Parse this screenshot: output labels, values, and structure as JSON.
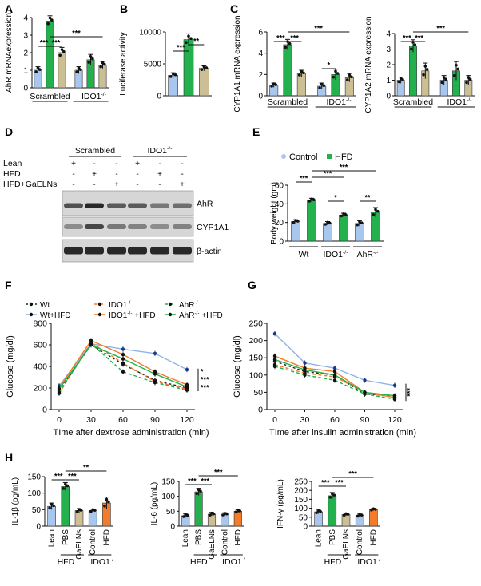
{
  "colors": {
    "lean": "#a9c7ee",
    "hfd": "#22b14c",
    "gaelns": "#cdbf94",
    "ctrl_ido": "#a9c7ee",
    "hfd_ido": "#f47b2a",
    "sig_line": "#111111"
  },
  "chart_data": [
    {
      "id": "A",
      "panel_label": "A",
      "type": "bar",
      "ylabel": "AhR mRNAexpression",
      "ylim": [
        0,
        4
      ],
      "yticks": [
        "0",
        "1",
        "2",
        "3",
        "4"
      ],
      "values": [
        1.0,
        3.8,
        2.0,
        1.0,
        1.6,
        1.3
      ],
      "errors": [
        0.2,
        0.3,
        0.3,
        0.2,
        0.3,
        0.2
      ],
      "bar_colors": [
        "lean",
        "hfd",
        "gaelns",
        "lean",
        "hfd",
        "gaelns"
      ],
      "group_labels": [
        "Scrambled",
        "IDO1-/-"
      ],
      "sig": [
        {
          "from": 0,
          "to": 1,
          "text": "***"
        },
        {
          "from": 1,
          "to": 2,
          "text": "***"
        },
        {
          "from": 1,
          "to": 5,
          "text": "***"
        }
      ]
    },
    {
      "id": "B",
      "panel_label": "B",
      "type": "bar",
      "ylabel": "Luciferase activity",
      "ylim": [
        0,
        10000
      ],
      "yticks": [
        "0",
        "5000",
        "10000"
      ],
      "values": [
        3200,
        8800,
        4300
      ],
      "errors": [
        400,
        900,
        400
      ],
      "bar_colors": [
        "lean",
        "hfd",
        "gaelns"
      ],
      "group_labels": [],
      "sig": [
        {
          "from": 0,
          "to": 1,
          "text": "***"
        },
        {
          "from": 1,
          "to": 2,
          "text": "**"
        }
      ]
    },
    {
      "id": "C1",
      "panel_label": "C",
      "type": "bar",
      "ylabel": "CYP1A1 mRNA expression",
      "ylim": [
        0,
        6
      ],
      "yticks": [
        "0",
        "2",
        "4",
        "6"
      ],
      "values": [
        1.0,
        4.8,
        2.1,
        0.9,
        2.0,
        1.7
      ],
      "errors": [
        0.2,
        0.5,
        0.3,
        0.3,
        0.5,
        0.4
      ],
      "bar_colors": [
        "lean",
        "hfd",
        "gaelns",
        "lean",
        "hfd",
        "gaelns"
      ],
      "group_labels": [
        "Scrambled",
        "IDO1-/-"
      ],
      "sig": [
        {
          "from": 0,
          "to": 1,
          "text": "***"
        },
        {
          "from": 1,
          "to": 2,
          "text": "***"
        },
        {
          "from": 3,
          "to": 4,
          "text": "*"
        },
        {
          "from": 1,
          "to": 5,
          "text": "***"
        }
      ]
    },
    {
      "id": "C2",
      "panel_label": "",
      "type": "bar",
      "ylabel": "CYP1A2 mRNA expression",
      "ylim": [
        0,
        4
      ],
      "yticks": [
        "0",
        "1",
        "2",
        "3",
        "4"
      ],
      "values": [
        1.0,
        3.2,
        1.6,
        1.0,
        1.6,
        1.0
      ],
      "errors": [
        0.2,
        0.4,
        0.5,
        0.3,
        0.6,
        0.3
      ],
      "bar_colors": [
        "lean",
        "hfd",
        "gaelns",
        "lean",
        "hfd",
        "gaelns"
      ],
      "group_labels": [
        "Scrambled",
        "IDO1-/-"
      ],
      "sig": [
        {
          "from": 0,
          "to": 1,
          "text": "***"
        },
        {
          "from": 1,
          "to": 2,
          "text": "***"
        },
        {
          "from": 1,
          "to": 5,
          "text": "***"
        }
      ]
    },
    {
      "id": "E",
      "panel_label": "E",
      "type": "bar",
      "ylabel": "Body weight (gm)",
      "ylim": [
        0,
        60
      ],
      "yticks": [
        "0",
        "20",
        "40",
        "60"
      ],
      "legend": [
        "Control",
        "HFD"
      ],
      "values": [
        21,
        44,
        19,
        28,
        19,
        31
      ],
      "errors": [
        2,
        2,
        2,
        2,
        3,
        5
      ],
      "bar_colors": [
        "lean",
        "hfd",
        "lean",
        "hfd",
        "lean",
        "hfd"
      ],
      "group_labels": [
        "Wt",
        "IDO1-/-",
        "AhR-/-"
      ],
      "sig": [
        {
          "from": 0,
          "to": 1,
          "text": "***"
        },
        {
          "from": 1,
          "to": 3,
          "text": "***"
        },
        {
          "from": 2,
          "to": 3,
          "text": "*"
        },
        {
          "from": 4,
          "to": 5,
          "text": "**"
        },
        {
          "from": 1,
          "to": 5,
          "text": "***"
        }
      ]
    },
    {
      "id": "F",
      "panel_label": "F",
      "type": "line",
      "ylabel": "Glucose (mg/dl)",
      "xlabel": "TIme after dextrose administration (min)",
      "x": [
        0,
        30,
        60,
        90,
        120
      ],
      "xticks": [
        "0",
        "30",
        "60",
        "90",
        "120"
      ],
      "ylim": [
        0,
        800
      ],
      "yticks": [
        "0",
        "200",
        "400",
        "600",
        "800"
      ],
      "series": [
        {
          "name": "Wt",
          "color": "#222222",
          "dash": "3,3",
          "values": [
            170,
            600,
            420,
            270,
            200
          ]
        },
        {
          "name": "Wt+HFD",
          "color": "#8fb4e8",
          "dash": "",
          "values": [
            220,
            610,
            560,
            520,
            370
          ]
        },
        {
          "name": "IDO1-/-",
          "color": "#f47b2a",
          "dash": "4,3",
          "values": [
            150,
            620,
            430,
            260,
            190
          ]
        },
        {
          "name": "IDO1-/- +HFD",
          "color": "#f47b2a",
          "dash": "",
          "values": [
            200,
            640,
            510,
            350,
            230
          ]
        },
        {
          "name": "AhR-/-",
          "color": "#22b14c",
          "dash": "4,3",
          "values": [
            160,
            610,
            350,
            250,
            180
          ]
        },
        {
          "name": "AhR-/- +HFD",
          "color": "#22b14c",
          "dash": "",
          "values": [
            190,
            600,
            470,
            330,
            210
          ]
        }
      ],
      "sig_labels": [
        "*",
        "***",
        "***"
      ]
    },
    {
      "id": "G",
      "panel_label": "G",
      "type": "line",
      "ylabel": "Glucose (mg/dl)",
      "xlabel": "TIme after insulin administration (min)",
      "x": [
        0,
        30,
        60,
        90,
        120
      ],
      "xticks": [
        "0",
        "30",
        "60",
        "90",
        "120"
      ],
      "ylim": [
        0,
        250
      ],
      "yticks": [
        "0",
        "50",
        "100",
        "150",
        "200",
        "250"
      ],
      "series": [
        {
          "name": "Wt",
          "color": "#222222",
          "dash": "3,3",
          "values": [
            140,
            110,
            100,
            45,
            40
          ]
        },
        {
          "name": "Wt+HFD",
          "color": "#8fb4e8",
          "dash": "",
          "values": [
            220,
            135,
            120,
            85,
            70
          ]
        },
        {
          "name": "IDO1-/-",
          "color": "#f47b2a",
          "dash": "4,3",
          "values": [
            130,
            105,
            95,
            50,
            35
          ]
        },
        {
          "name": "IDO1-/- +HFD",
          "color": "#f47b2a",
          "dash": "",
          "values": [
            155,
            120,
            110,
            50,
            35
          ]
        },
        {
          "name": "AhR-/-",
          "color": "#22b14c",
          "dash": "4,3",
          "values": [
            125,
            100,
            85,
            45,
            30
          ]
        },
        {
          "name": "AhR-/- +HFD",
          "color": "#22b14c",
          "dash": "",
          "values": [
            145,
            115,
            100,
            50,
            40
          ]
        }
      ],
      "sig_labels": [
        "***"
      ]
    },
    {
      "id": "H1",
      "panel_label": "H",
      "type": "bar",
      "ylabel": "IL-1β (pg/mL)",
      "ylim": [
        0,
        150
      ],
      "yticks": [
        "0",
        "50",
        "100",
        "150"
      ],
      "values": [
        60,
        120,
        47,
        47,
        70
      ],
      "errors": [
        10,
        12,
        6,
        5,
        18
      ],
      "bar_colors": [
        "lean",
        "hfd",
        "gaelns",
        "ctrl_ido",
        "hfd_ido"
      ],
      "categories": [
        "Lean",
        "PBS",
        "GaELNs",
        "Control",
        "HFD"
      ],
      "group_labels": [
        "HFD",
        "IDO1-/-"
      ],
      "sig": [
        {
          "from": 0,
          "to": 1,
          "text": "***"
        },
        {
          "from": 1,
          "to": 2,
          "text": "***"
        },
        {
          "from": 1,
          "to": 4,
          "text": "**"
        }
      ]
    },
    {
      "id": "H2",
      "panel_label": "",
      "type": "bar",
      "ylabel": "IL-6 (pg/mL)",
      "ylim": [
        0,
        150
      ],
      "yticks": [
        "0",
        "50",
        "100",
        "150"
      ],
      "values": [
        35,
        115,
        40,
        40,
        50
      ],
      "errors": [
        6,
        12,
        6,
        5,
        5
      ],
      "bar_colors": [
        "lean",
        "hfd",
        "gaelns",
        "ctrl_ido",
        "hfd_ido"
      ],
      "categories": [
        "Lean",
        "PBS",
        "GaELNs",
        "Control",
        "HFD"
      ],
      "group_labels": [
        "HFD",
        "IDO1-/-"
      ],
      "sig": [
        {
          "from": 0,
          "to": 1,
          "text": "***"
        },
        {
          "from": 1,
          "to": 2,
          "text": "***"
        },
        {
          "from": 1,
          "to": 4,
          "text": "***"
        }
      ]
    },
    {
      "id": "H3",
      "panel_label": "",
      "type": "bar",
      "ylabel": "IFN-γ (pg/mL)",
      "ylim": [
        0,
        250
      ],
      "yticks": [
        "0",
        "50",
        "100",
        "150",
        "200",
        "250"
      ],
      "values": [
        80,
        170,
        65,
        60,
        93
      ],
      "errors": [
        10,
        18,
        8,
        8,
        6
      ],
      "bar_colors": [
        "lean",
        "hfd",
        "gaelns",
        "ctrl_ido",
        "hfd_ido"
      ],
      "categories": [
        "Lean",
        "PBS",
        "GaELNs",
        "Control",
        "HFD"
      ],
      "group_labels": [
        "HFD",
        "IDO1-/-"
      ],
      "sig": [
        {
          "from": 0,
          "to": 1,
          "text": "***"
        },
        {
          "from": 1,
          "to": 2,
          "text": "***"
        },
        {
          "from": 1,
          "to": 4,
          "text": "***"
        }
      ]
    }
  ],
  "blot": {
    "panel_label": "D",
    "groups": [
      "Scrambled",
      "IDO1-/-"
    ],
    "row_labels": [
      "Lean",
      "HFD",
      "HFD+GaELNs"
    ],
    "signs": [
      [
        "+",
        "-",
        "-",
        "+",
        "-",
        "-"
      ],
      [
        "-",
        "+",
        "-",
        "-",
        "+",
        "-"
      ],
      [
        "-",
        "-",
        "+",
        "-",
        "-",
        "+"
      ]
    ],
    "bands": [
      "AhR",
      "CYP1A1",
      "β-actin"
    ],
    "intensity": [
      [
        0.75,
        0.95,
        0.7,
        0.7,
        0.55,
        0.6
      ],
      [
        0.45,
        0.8,
        0.55,
        0.5,
        0.45,
        0.5
      ],
      [
        0.95,
        0.95,
        0.95,
        0.95,
        0.95,
        0.95
      ]
    ]
  }
}
